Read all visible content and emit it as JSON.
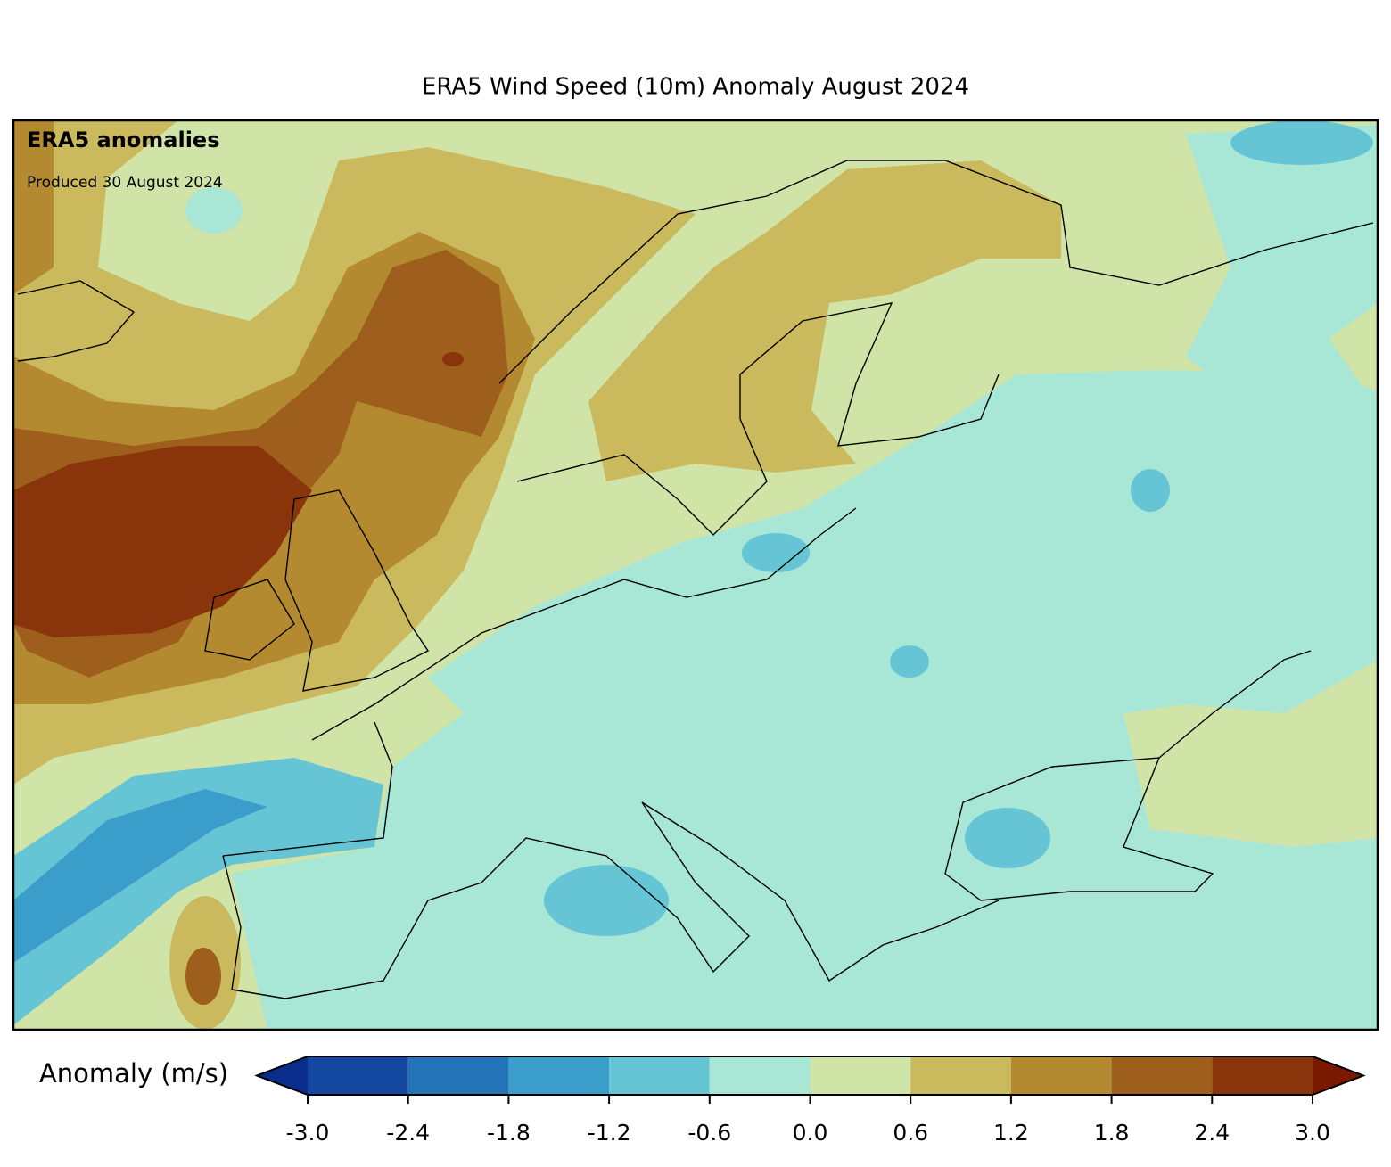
{
  "title": "ERA5 Wind Speed (10m) Anomaly August 2024",
  "annotations": {
    "heading": "ERA5 anomalies",
    "produced": "Produced 30 August 2024"
  },
  "colorbar": {
    "label": "Anomaly (m/s)",
    "lim": [
      -3,
      3
    ],
    "ticks": [
      {
        "value": -3,
        "label": "-3.0"
      },
      {
        "value": -2.4,
        "label": "-2.4"
      },
      {
        "value": -1.8,
        "label": "-1.8"
      },
      {
        "value": -1.2,
        "label": "-1.2"
      },
      {
        "value": -0.6,
        "label": "-0.6"
      },
      {
        "value": 0,
        "label": "0.0"
      },
      {
        "value": 0.6,
        "label": "0.6"
      },
      {
        "value": 1.2,
        "label": "1.2"
      },
      {
        "value": 1.8,
        "label": "1.8"
      },
      {
        "value": 2.4,
        "label": "2.4"
      },
      {
        "value": 3,
        "label": "3.0"
      }
    ],
    "colors": [
      "#1448a0",
      "#2473b6",
      "#3a9dca",
      "#66c5d5",
      "#a8e6d6",
      "#d0e4a8",
      "#cbb95e",
      "#b48a30",
      "#9e5e1c",
      "#8a340c"
    ],
    "under_color": "#0a2d8c",
    "over_color": "#7a1800"
  }
}
